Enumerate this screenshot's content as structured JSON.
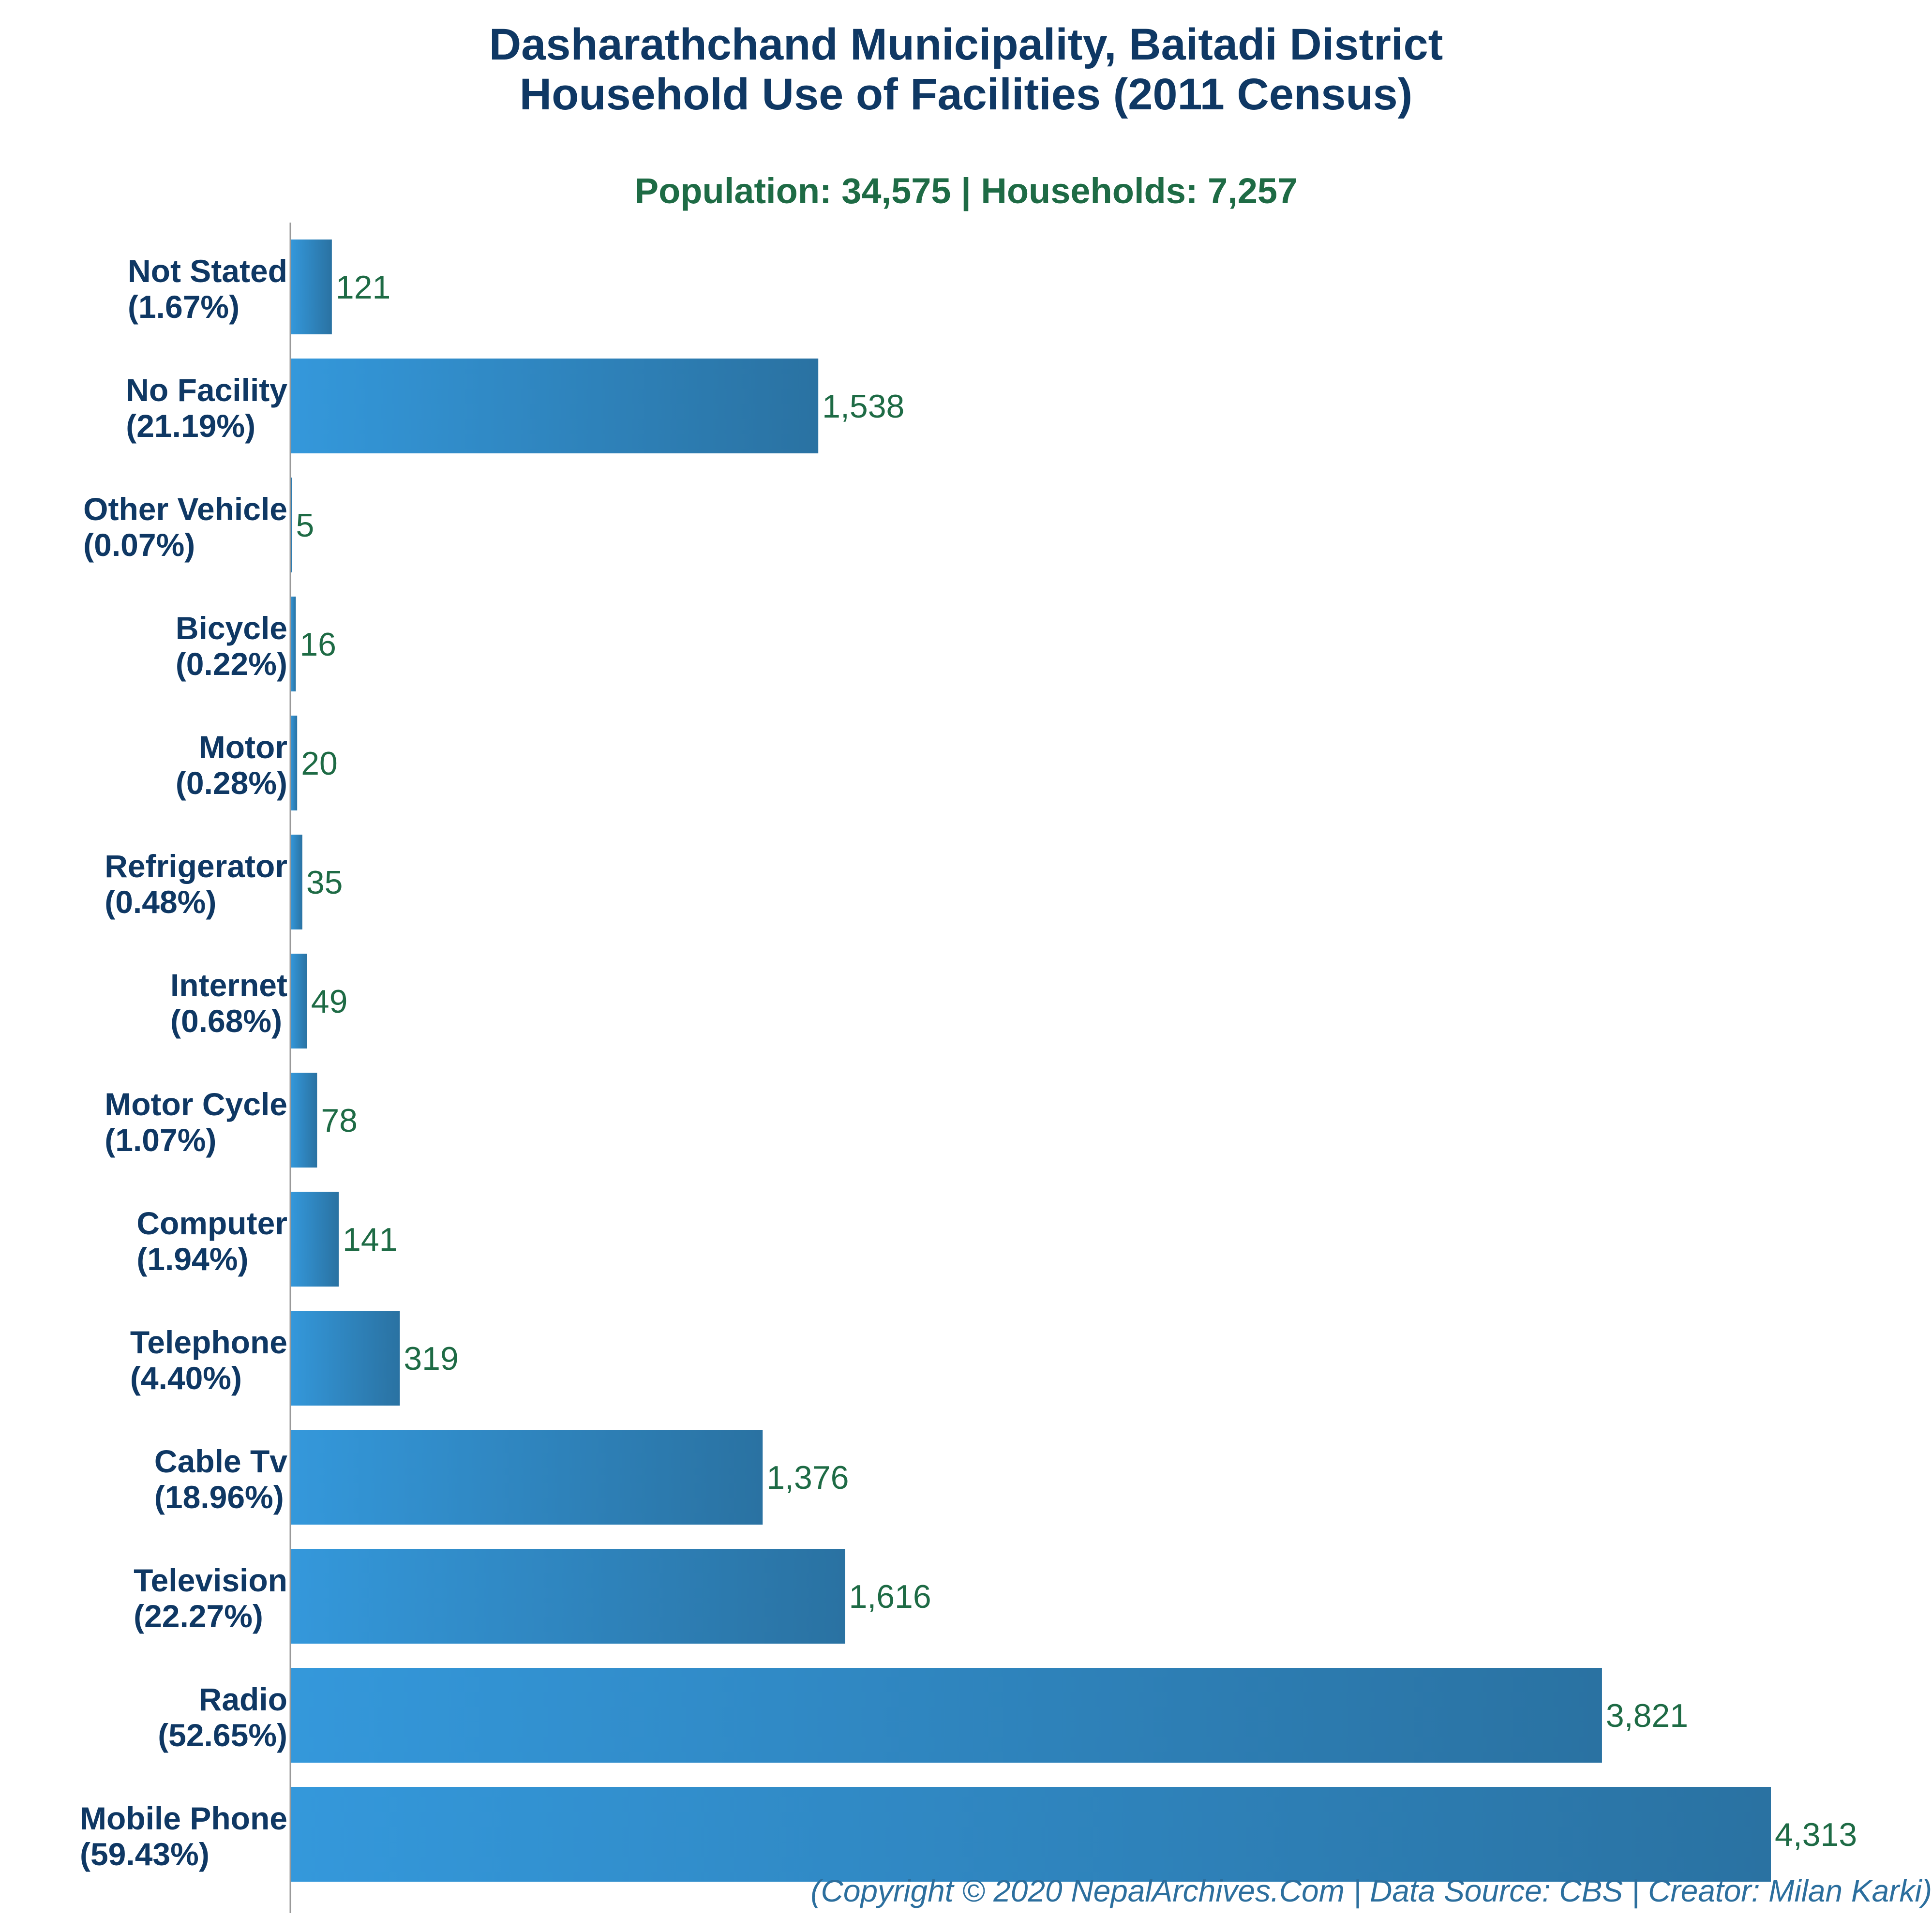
{
  "chart_data": {
    "type": "bar",
    "orientation": "horizontal",
    "title": "Dasharathchand Municipality, Baitadi District",
    "title_line2": "Household Use of Facilities (2011 Census)",
    "subtitle": "Population: 34,575 | Households: 7,257",
    "categories": [
      "Not Stated",
      "No Facility",
      "Other Vehicle",
      "Bicycle",
      "Motor",
      "Refrigerator",
      "Internet",
      "Motor Cycle",
      "Computer",
      "Telephone",
      "Cable Tv",
      "Television",
      "Radio",
      "Mobile Phone"
    ],
    "percent_labels": [
      "(1.67%)",
      "(21.19%)",
      "(0.07%)",
      "(0.22%)",
      "(0.28%)",
      "(0.48%)",
      "(0.68%)",
      "(1.07%)",
      "(1.94%)",
      "(4.40%)",
      "(18.96%)",
      "(22.27%)",
      "(52.65%)",
      "(59.43%)"
    ],
    "values": [
      121,
      1538,
      5,
      16,
      20,
      35,
      49,
      78,
      141,
      319,
      1376,
      1616,
      3821,
      4313
    ],
    "value_labels": [
      "121",
      "1,538",
      "5",
      "16",
      "20",
      "35",
      "49",
      "78",
      "141",
      "319",
      "1,376",
      "1,616",
      "3,821",
      "4,313"
    ],
    "xlim": [
      0,
      4313
    ],
    "grid": false,
    "legend": "none",
    "footer": "(Copyright © 2020 NepalArchives.Com | Data Source: CBS | Creator: Milan Karki)"
  },
  "colors": {
    "title": "#0f3864",
    "subtitle": "#1e6b45",
    "category_label": "#0f3864",
    "value_label": "#1e6b45",
    "bar_gradient_start": "#3498db",
    "bar_gradient_end": "#2a72a2",
    "axis": "#999999",
    "footer": "#2c6f9e"
  }
}
